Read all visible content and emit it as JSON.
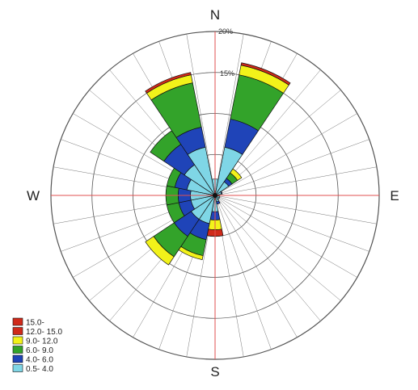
{
  "chart_data": {
    "type": "wind-rose",
    "directions": [
      "N",
      "NNE",
      "NE",
      "ENE",
      "E",
      "ESE",
      "SE",
      "SSE",
      "S",
      "SSW",
      "SW",
      "WSW",
      "W",
      "WNW",
      "NW",
      "NNW"
    ],
    "direction_labels": {
      "N": "N",
      "E": "E",
      "S": "S",
      "W": "W"
    },
    "ring_labels": [
      "20%",
      "15%"
    ],
    "rmax": 20,
    "ring_step": 5,
    "bins": [
      {
        "label": "0.5- 4.0",
        "color": "#7fd6e6"
      },
      {
        "label": "4.0- 6.0",
        "color": "#1f44b8"
      },
      {
        "label": "6.0- 9.0",
        "color": "#33a32a"
      },
      {
        "label": "9.0- 12.0",
        "color": "#f2f21a"
      },
      {
        "label": "12.0- 15.0",
        "color": "#d02a1a"
      },
      {
        "label": "15.0-",
        "color": "#d02a1a"
      }
    ],
    "series": [
      [
        2.0,
        0.0,
        0.0,
        0.0,
        0.0,
        0.0
      ],
      [
        6.0,
        3.5,
        5.5,
        1.2,
        0.3,
        0.0
      ],
      [
        2.0,
        0.5,
        0.8,
        0.6,
        0.0,
        0.0
      ],
      [
        0.8,
        0.1,
        0.0,
        0.0,
        0.0,
        0.0
      ],
      [
        0.5,
        0.0,
        0.0,
        0.0,
        0.0,
        0.0
      ],
      [
        0.6,
        0.0,
        0.0,
        0.0,
        0.0,
        0.0
      ],
      [
        0.6,
        0.0,
        0.0,
        0.0,
        0.0,
        0.0
      ],
      [
        0.8,
        0.3,
        0.0,
        0.0,
        0.0,
        0.0
      ],
      [
        2.0,
        1.0,
        0.0,
        1.2,
        0.8,
        0.0
      ],
      [
        3.5,
        2.0,
        2.0,
        0.5,
        0.0,
        0.0
      ],
      [
        3.5,
        2.5,
        3.0,
        1.2,
        0.0,
        0.0
      ],
      [
        3.0,
        1.5,
        1.5,
        0.0,
        0.0,
        0.0
      ],
      [
        3.0,
        1.5,
        1.5,
        0.0,
        0.0,
        0.0
      ],
      [
        3.5,
        1.5,
        1.0,
        0.0,
        0.0,
        0.0
      ],
      [
        4.5,
        3.0,
        2.0,
        0.0,
        0.0,
        0.0
      ],
      [
        6.0,
        2.5,
        5.5,
        1.0,
        0.3,
        0.0
      ]
    ]
  }
}
